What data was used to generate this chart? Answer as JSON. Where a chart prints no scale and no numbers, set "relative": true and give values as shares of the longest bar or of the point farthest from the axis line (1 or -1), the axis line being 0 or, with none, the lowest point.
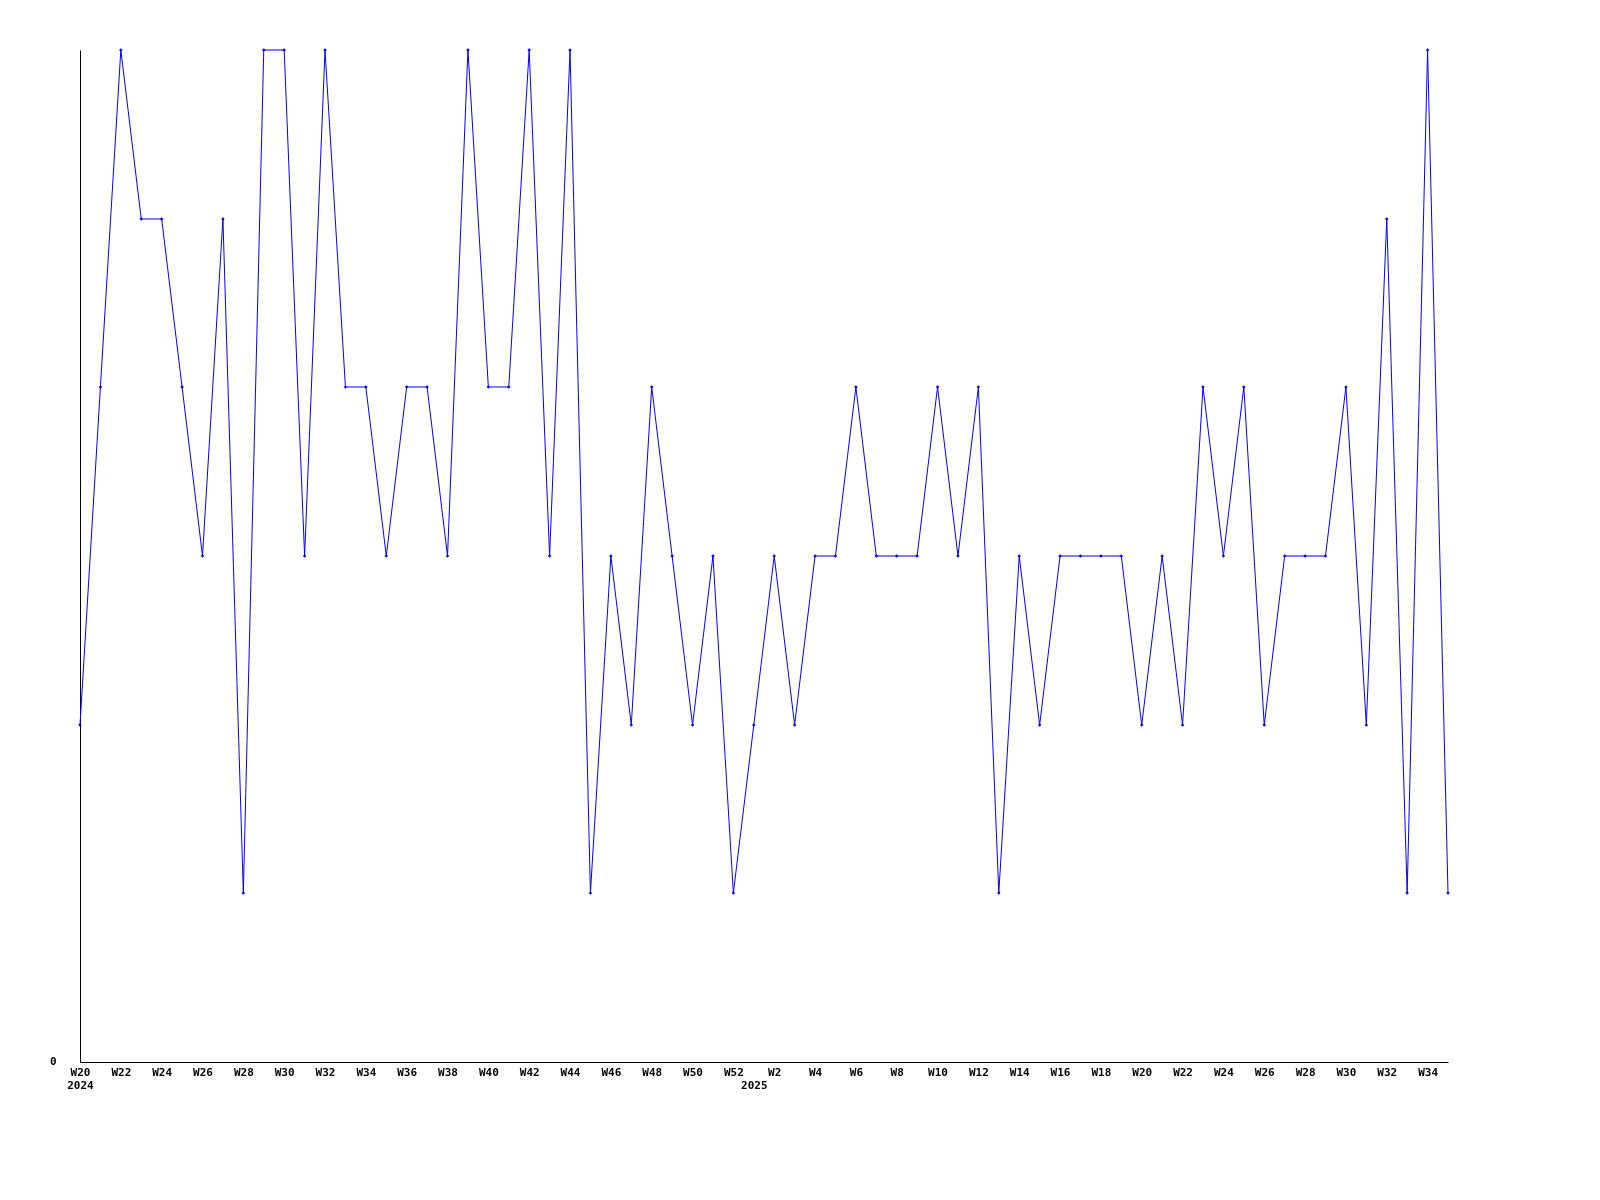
{
  "chart_data": {
    "type": "line",
    "relative": true,
    "categories": [
      "W20\n2024",
      null,
      "W22",
      null,
      "W24",
      null,
      "W26",
      null,
      "W28",
      null,
      "W30",
      null,
      "W32",
      null,
      "W34",
      null,
      "W36",
      null,
      "W38",
      null,
      "W40",
      null,
      "W42",
      null,
      "W44",
      null,
      "W46",
      null,
      "W48",
      null,
      "W50",
      null,
      "W52",
      "\n2025",
      "W2",
      null,
      "W4",
      null,
      "W6",
      null,
      "W8",
      null,
      "W10",
      null,
      "W12",
      null,
      "W14",
      null,
      "W16",
      null,
      "W18",
      null,
      "W20",
      null,
      "W22",
      null,
      "W24",
      null,
      "W26",
      null,
      "W28",
      null,
      "W30",
      null,
      "W32",
      null,
      "W34",
      null
    ],
    "series": [
      {
        "color": "#0000ff",
        "values": [
          0.333,
          0.667,
          1,
          0.833,
          0.833,
          0.667,
          0.5,
          0.833,
          0.167,
          1,
          1,
          0.5,
          1,
          0.667,
          0.667,
          0.5,
          0.667,
          0.667,
          0.5,
          1,
          0.667,
          0.667,
          1,
          0.5,
          1,
          0.167,
          0.5,
          0.333,
          0.667,
          0.5,
          0.333,
          0.5,
          0.167,
          0.333,
          0.5,
          0.333,
          0.5,
          0.5,
          0.667,
          0.5,
          0.5,
          0.5,
          0.667,
          0.5,
          0.667,
          0.167,
          0.5,
          0.333,
          0.5,
          0.5,
          0.5,
          0.5,
          0.333,
          0.5,
          0.333,
          0.667,
          0.5,
          0.667,
          0.333,
          0.5,
          0.5,
          0.5,
          0.667,
          0.333,
          0.833,
          0.167,
          1,
          0.167
        ]
      }
    ],
    "marker": "diamond",
    "grid": false,
    "annotations": [
      "0"
    ]
  }
}
